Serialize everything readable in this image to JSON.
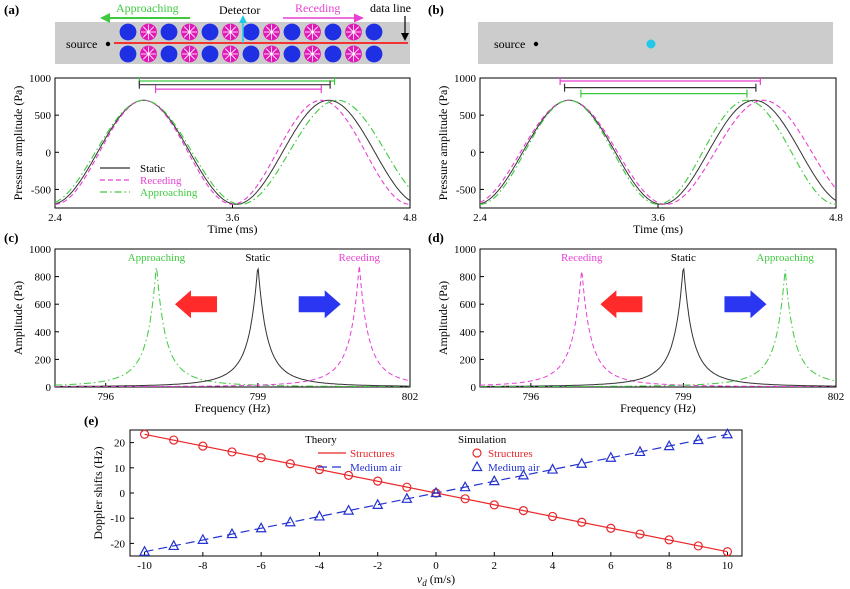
{
  "colors": {
    "static": "#333333",
    "receding": "#e83fd3",
    "approaching": "#3ec93e",
    "structures": "#e8282b",
    "medium_air": "#2433cf",
    "strip": "#cccccc",
    "line_red": "#ff0000",
    "circle_blue": "#1f2fe3",
    "circle_magenta": "#e01ab8",
    "detector": "#23c8e8",
    "arrow_red": "#ff2a2a",
    "arrow_blue": "#2b36f2"
  },
  "panels": {
    "a": {
      "label": "(a)"
    },
    "b": {
      "label": "(b)"
    },
    "c": {
      "label": "(c)"
    },
    "d": {
      "label": "(d)"
    },
    "e": {
      "label": "(e)"
    }
  },
  "schematic_a": {
    "source": "source",
    "detector": "Detector",
    "approaching": "Approaching",
    "receding": "Receding",
    "data_line": "data line"
  },
  "schematic_b": {
    "source": "source"
  },
  "chart_data": [
    {
      "id": "a",
      "type": "line",
      "xlabel": "Time (ms)",
      "ylabel": "Pressure amplitude (Pa)",
      "xlim": [
        2.4,
        4.8
      ],
      "ylim": [
        -750,
        1000
      ],
      "xticks": [
        "2.4",
        "3.6",
        "4.8"
      ],
      "yticks": [
        "-500",
        "0",
        "500",
        "1000"
      ],
      "series": [
        {
          "name": "Static",
          "style": "solid",
          "color_key": "static",
          "amplitude": 700,
          "peak_x": 3.0,
          "period": 1.25
        },
        {
          "name": "Receding",
          "style": "dashed",
          "color_key": "receding",
          "amplitude": 700,
          "peak_x": 3.0,
          "period": 1.2
        },
        {
          "name": "Approaching",
          "style": "dashdot",
          "color_key": "approaching",
          "amplitude": 700,
          "peak_x": 3.0,
          "period": 1.31
        }
      ],
      "brackets": [
        {
          "color_key": "approaching",
          "x1": 2.97,
          "x2": 4.29,
          "y": 960
        },
        {
          "color_key": "static",
          "x1": 2.97,
          "x2": 4.26,
          "y": 910
        },
        {
          "color_key": "receding",
          "x1": 3.08,
          "x2": 4.2,
          "y": 850
        }
      ],
      "legend": {
        "position": "bottom-left"
      }
    },
    {
      "id": "b",
      "type": "line",
      "xlabel": "Time (ms)",
      "ylabel": "Pressure amplitude (Pa)",
      "xlim": [
        2.4,
        4.8
      ],
      "ylim": [
        -750,
        1000
      ],
      "xticks": [
        "2.4",
        "3.6",
        "4.8"
      ],
      "yticks": [
        "-500",
        "0",
        "500",
        "1000"
      ],
      "series": [
        {
          "name": "",
          "style": "solid",
          "color_key": "static",
          "amplitude": 700,
          "peak_x": 3.0,
          "period": 1.25
        },
        {
          "name": "",
          "style": "dashed",
          "color_key": "receding",
          "amplitude": 700,
          "peak_x": 3.0,
          "period": 1.31
        },
        {
          "name": "",
          "style": "dashdot",
          "color_key": "approaching",
          "amplitude": 700,
          "peak_x": 3.0,
          "period": 1.2
        }
      ],
      "brackets": [
        {
          "color_key": "receding",
          "x1": 2.94,
          "x2": 4.29,
          "y": 960
        },
        {
          "color_key": "static",
          "x1": 2.97,
          "x2": 4.26,
          "y": 870
        },
        {
          "color_key": "approaching",
          "x1": 3.08,
          "x2": 4.2,
          "y": 790
        }
      ]
    },
    {
      "id": "c",
      "type": "line",
      "xlabel": "Frequency (Hz)",
      "ylabel": "Amplitude (Pa)",
      "xlim": [
        795,
        802
      ],
      "ylim": [
        0,
        1000
      ],
      "xticks": [
        "796",
        "799",
        "802"
      ],
      "yticks": [
        "0",
        "200",
        "400",
        "600",
        "800",
        "1000"
      ],
      "series": [
        {
          "name": "Approaching",
          "style": "dashdot",
          "color_key": "approaching",
          "center": 797.0,
          "peak": 890
        },
        {
          "name": "Static",
          "style": "solid",
          "color_key": "static",
          "center": 799.0,
          "peak": 890
        },
        {
          "name": "Receding",
          "style": "dashed",
          "color_key": "receding",
          "center": 801.0,
          "peak": 890
        }
      ],
      "arrows": [
        {
          "direction": "left",
          "color_key": "arrow_red",
          "x": 797.8,
          "y": 600
        },
        {
          "direction": "right",
          "color_key": "arrow_blue",
          "x": 800.2,
          "y": 600
        }
      ]
    },
    {
      "id": "d",
      "type": "line",
      "xlabel": "Frequency (Hz)",
      "ylabel": "Amplitude (Pa)",
      "xlim": [
        795,
        802
      ],
      "ylim": [
        0,
        1000
      ],
      "xticks": [
        "796",
        "799",
        "802"
      ],
      "yticks": [
        "0",
        "200",
        "400",
        "600",
        "800",
        "1000"
      ],
      "series": [
        {
          "name": "Receding",
          "style": "dashed",
          "color_key": "receding",
          "center": 797.0,
          "peak": 860
        },
        {
          "name": "Static",
          "style": "solid",
          "color_key": "static",
          "center": 799.0,
          "peak": 890
        },
        {
          "name": "Approaching",
          "style": "dashdot",
          "color_key": "approaching",
          "center": 801.0,
          "peak": 860
        }
      ],
      "arrows": [
        {
          "direction": "left",
          "color_key": "arrow_red",
          "x": 797.8,
          "y": 600
        },
        {
          "direction": "right",
          "color_key": "arrow_blue",
          "x": 800.2,
          "y": 600
        }
      ]
    },
    {
      "id": "e",
      "type": "line",
      "xlabel": "v",
      "xlabel_sub": "d",
      "xlabel_unit": " (m/s)",
      "ylabel": "Doppler shifts (Hz)",
      "xlim": [
        -10.5,
        10.5
      ],
      "ylim": [
        -25,
        25
      ],
      "xticks": [
        "-10",
        "-8",
        "-6",
        "-4",
        "-2",
        "0",
        "2",
        "4",
        "6",
        "8",
        "10"
      ],
      "yticks": [
        "-20",
        "-10",
        "0",
        "10",
        "20"
      ],
      "legend_titles": {
        "theory": "Theory",
        "simulation": "Simulation"
      },
      "series": [
        {
          "name": "Structures",
          "kind": "theory",
          "style": "solid",
          "color_key": "structures",
          "x": [
            -10,
            10
          ],
          "y": [
            23.3,
            -23.3
          ]
        },
        {
          "name": "Medium air",
          "kind": "theory",
          "style": "dashed",
          "color_key": "medium_air",
          "x": [
            -10,
            10
          ],
          "y": [
            -23.3,
            23.3
          ]
        },
        {
          "name": "Structures",
          "kind": "simulation",
          "marker": "circle",
          "color_key": "structures",
          "x": [
            -10,
            -9,
            -8,
            -7,
            -6,
            -5,
            -4,
            -3,
            -2,
            -1,
            0,
            1,
            2,
            3,
            4,
            5,
            6,
            7,
            8,
            9,
            10
          ],
          "y": [
            23.3,
            21.0,
            18.6,
            16.3,
            14.0,
            11.6,
            9.3,
            7.0,
            4.7,
            2.3,
            0,
            -2.3,
            -4.7,
            -7.0,
            -9.3,
            -11.6,
            -14.0,
            -16.3,
            -18.6,
            -21.0,
            -23.3
          ]
        },
        {
          "name": "Medium air",
          "kind": "simulation",
          "marker": "triangle",
          "color_key": "medium_air",
          "x": [
            -10,
            -9,
            -8,
            -7,
            -6,
            -5,
            -4,
            -3,
            -2,
            -1,
            0,
            1,
            2,
            3,
            4,
            5,
            6,
            7,
            8,
            9,
            10
          ],
          "y": [
            -23.3,
            -21.0,
            -18.6,
            -16.3,
            -14.0,
            -11.6,
            -9.3,
            -7.0,
            -4.7,
            -2.3,
            0,
            2.3,
            4.7,
            7.0,
            9.3,
            11.6,
            14.0,
            16.3,
            18.6,
            21.0,
            23.3
          ]
        }
      ]
    }
  ]
}
